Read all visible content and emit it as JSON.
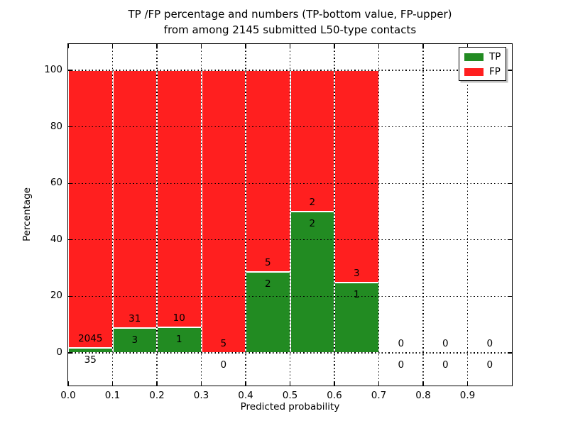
{
  "figure": {
    "title_line1": "TP /FP percentage and numbers (TP-bottom value, FP-upper)",
    "title_line2": "from among 2145 submitted L50-type contacts",
    "xlabel": "Predicted probability",
    "ylabel": "Percentage",
    "total_submitted": 2145,
    "contact_type": "L50"
  },
  "legend": {
    "items": [
      {
        "label": "TP",
        "color": "#228b22"
      },
      {
        "label": "FP",
        "color": "#ff1f1f"
      }
    ]
  },
  "chart_data": {
    "type": "bar",
    "subtype": "stacked-percentage-histogram",
    "title": "TP /FP percentage and numbers (TP-bottom value, FP-upper) from among 2145 submitted L50-type contacts",
    "xlabel": "Predicted probability",
    "ylabel": "Percentage",
    "xlim": [
      0.0,
      1.0
    ],
    "ylim": [
      -11.5,
      109.5
    ],
    "x_ticks": [
      "0.0",
      "0.1",
      "0.2",
      "0.3",
      "0.4",
      "0.5",
      "0.6",
      "0.7",
      "0.8",
      "0.9"
    ],
    "y_ticks": [
      0,
      20,
      40,
      60,
      80,
      100
    ],
    "grid": "dotted",
    "legend_position": "upper right",
    "bin_width": 0.1,
    "categories": [
      "0.0-0.1",
      "0.1-0.2",
      "0.2-0.3",
      "0.3-0.4",
      "0.4-0.5",
      "0.5-0.6",
      "0.6-0.7",
      "0.7-0.8",
      "0.8-0.9",
      "0.9-1.0"
    ],
    "series": [
      {
        "name": "TP",
        "color": "#228b22",
        "counts": [
          35,
          3,
          1,
          0,
          2,
          2,
          1,
          0,
          0,
          0
        ]
      },
      {
        "name": "FP",
        "color": "#ff1f1f",
        "counts": [
          2045,
          31,
          10,
          5,
          5,
          2,
          3,
          0,
          0,
          0
        ]
      }
    ],
    "tp_percent": [
      1.68,
      8.82,
      9.09,
      0.0,
      28.57,
      50.0,
      25.0,
      0.0,
      0.0,
      0.0
    ],
    "bins": [
      {
        "x0": 0.0,
        "x1": 0.1,
        "tp": 35,
        "fp": 2045
      },
      {
        "x0": 0.1,
        "x1": 0.2,
        "tp": 3,
        "fp": 31
      },
      {
        "x0": 0.2,
        "x1": 0.3,
        "tp": 1,
        "fp": 10
      },
      {
        "x0": 0.3,
        "x1": 0.4,
        "tp": 0,
        "fp": 5
      },
      {
        "x0": 0.4,
        "x1": 0.5,
        "tp": 2,
        "fp": 5
      },
      {
        "x0": 0.5,
        "x1": 0.6,
        "tp": 2,
        "fp": 2
      },
      {
        "x0": 0.6,
        "x1": 0.7,
        "tp": 1,
        "fp": 3
      },
      {
        "x0": 0.7,
        "x1": 0.8,
        "tp": 0,
        "fp": 0
      },
      {
        "x0": 0.8,
        "x1": 0.9,
        "tp": 0,
        "fp": 0
      },
      {
        "x0": 0.9,
        "x1": 1.0,
        "tp": 0,
        "fp": 0
      }
    ]
  }
}
